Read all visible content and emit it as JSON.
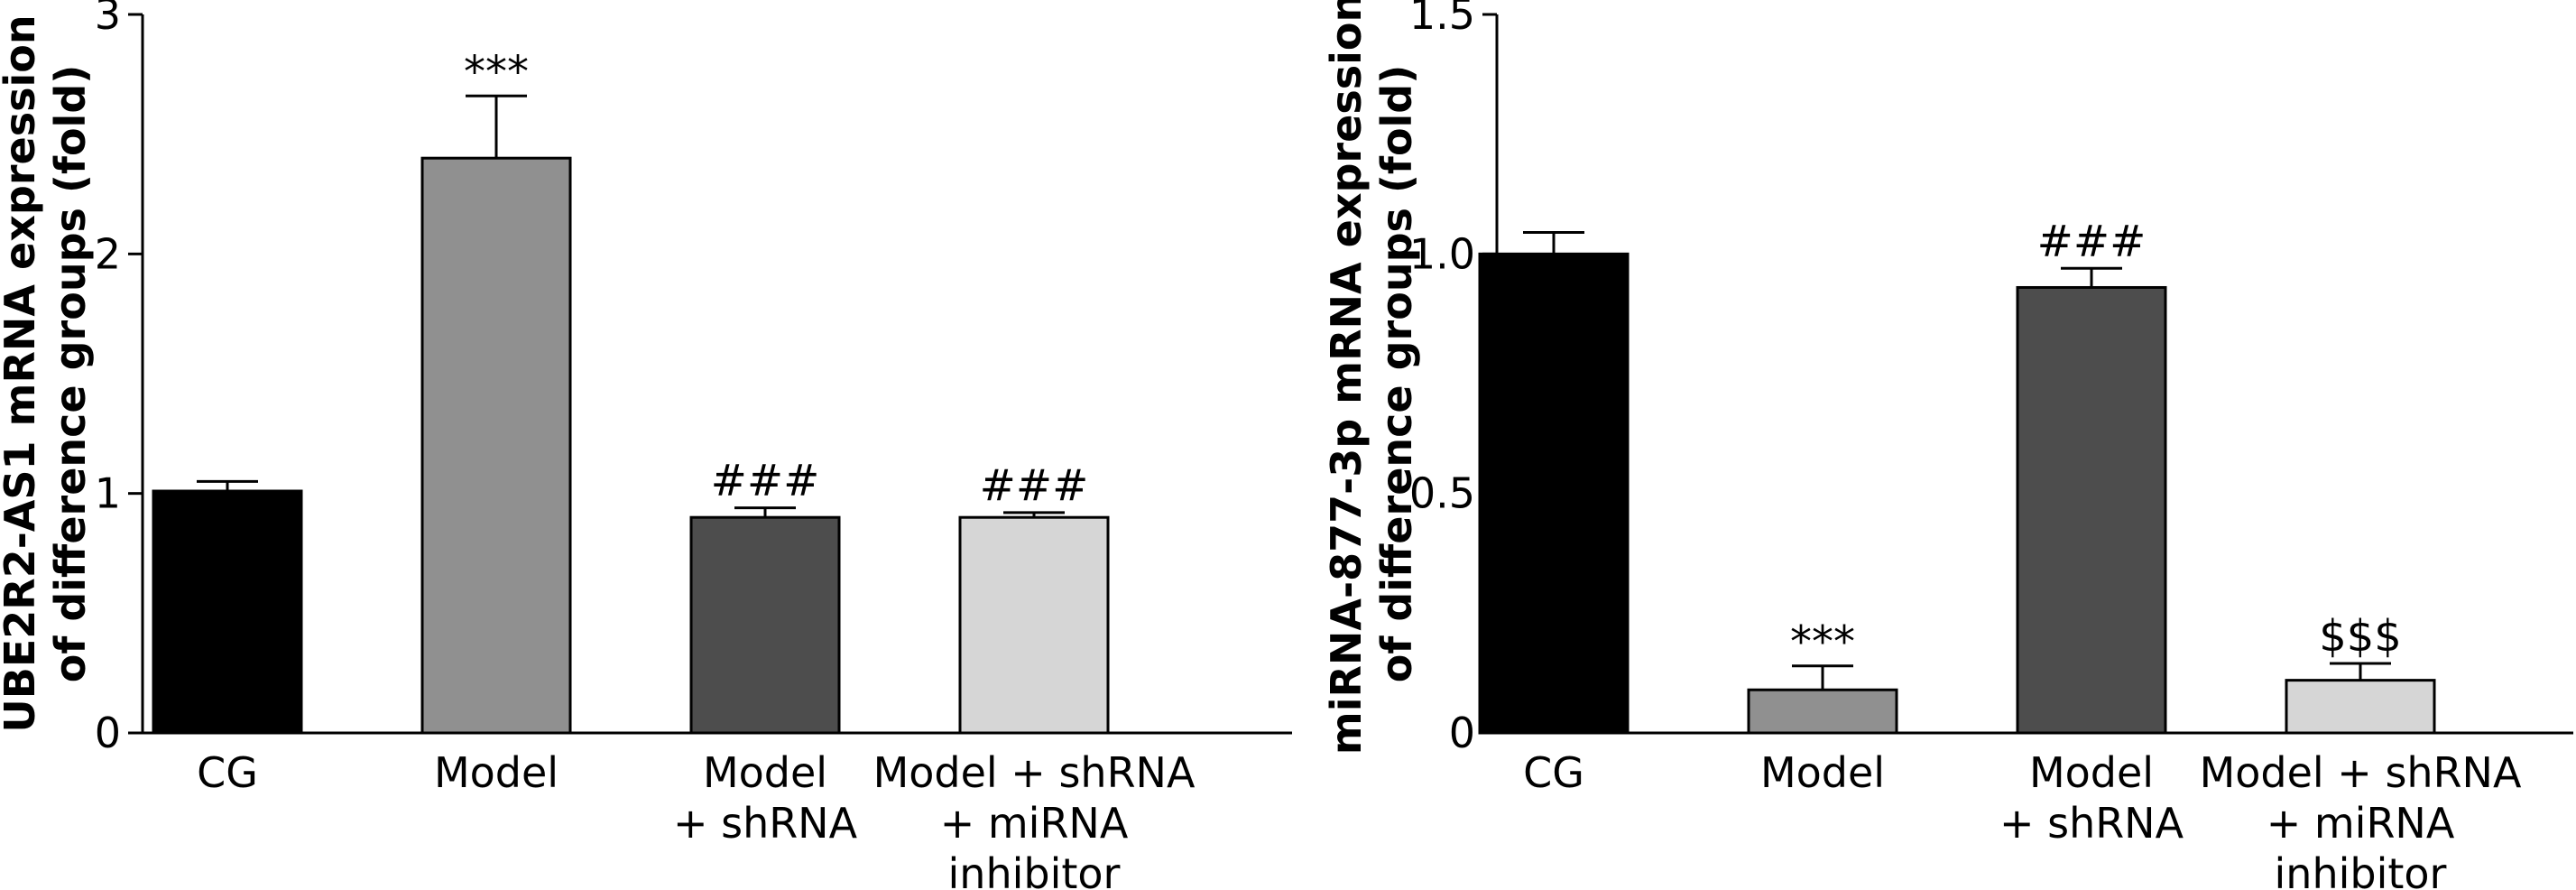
{
  "chart_data": [
    {
      "type": "bar",
      "ylabel_lines": [
        "UBE2R2-AS1 mRNA expression",
        "of difference groups (fold)"
      ],
      "categories": [
        [
          "CG"
        ],
        [
          "Model"
        ],
        [
          "Model",
          "+ shRNA"
        ],
        [
          "Model + shRNA",
          "+ miRNA",
          "inhibitor"
        ]
      ],
      "values": [
        1.01,
        2.4,
        0.9,
        0.9
      ],
      "errors": [
        0.04,
        0.26,
        0.04,
        0.02
      ],
      "colors": [
        "#000000",
        "#909090",
        "#4d4d4d",
        "#d6d6d6"
      ],
      "significance": [
        "",
        "***",
        "###",
        "###"
      ],
      "ylim": [
        0,
        3
      ],
      "yticks": [
        0,
        1,
        2,
        3
      ],
      "ytick_labels": [
        "0",
        "1",
        "2",
        "3"
      ]
    },
    {
      "type": "bar",
      "ylabel_lines": [
        "miRNA-877-3p mRNA expression",
        "of difference groups (fold)"
      ],
      "categories": [
        [
          "CG"
        ],
        [
          "Model"
        ],
        [
          "Model",
          "+ shRNA"
        ],
        [
          "Model + shRNA",
          "+ miRNA",
          "inhibitor"
        ]
      ],
      "values": [
        1.0,
        0.09,
        0.93,
        0.11
      ],
      "errors": [
        0.045,
        0.05,
        0.04,
        0.035
      ],
      "colors": [
        "#000000",
        "#909090",
        "#4d4d4d",
        "#d6d6d6"
      ],
      "significance": [
        "",
        "***",
        "###",
        "$$$"
      ],
      "ylim": [
        0,
        1.5
      ],
      "yticks": [
        0,
        0.5,
        1.0,
        1.5
      ],
      "ytick_labels": [
        "0",
        "0.5",
        "1.0",
        "1.5"
      ]
    }
  ]
}
